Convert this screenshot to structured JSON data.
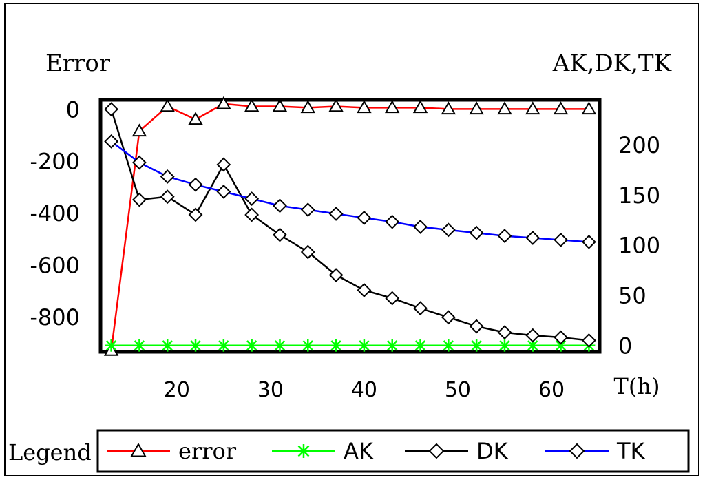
{
  "chart_data": {
    "type": "line",
    "left_axis_title": "Error",
    "right_axis_title": "AK,DK,TK",
    "xlabel": "T(h)",
    "x_ticks": [
      20,
      30,
      40,
      50,
      60
    ],
    "left_ticks": [
      0,
      -200,
      -400,
      -600,
      -800
    ],
    "right_ticks": [
      200,
      150,
      100,
      50,
      0
    ],
    "xlim": [
      12,
      65
    ],
    "ylim_left": [
      -930,
      30
    ],
    "ylim_right": [
      -5,
      243
    ],
    "x": [
      13,
      16,
      19,
      22,
      25,
      28,
      31,
      34,
      37,
      40,
      43,
      46,
      49,
      52,
      55,
      58,
      61,
      64
    ],
    "series": [
      {
        "name": "error",
        "axis": "left",
        "color": "#ff0000",
        "marker": "triangle",
        "values": [
          -930,
          -85,
          10,
          -40,
          20,
          10,
          10,
          5,
          10,
          5,
          5,
          5,
          0,
          0,
          0,
          0,
          0,
          0
        ]
      },
      {
        "name": "AK",
        "axis": "right",
        "color": "#00ff00",
        "marker": "star",
        "values": [
          0,
          0,
          0,
          0,
          0,
          0,
          0,
          0,
          0,
          0,
          0,
          0,
          0,
          0,
          0,
          0,
          0,
          0
        ]
      },
      {
        "name": "DK",
        "axis": "right",
        "color": "#000000",
        "marker": "diamond",
        "values": [
          235,
          145,
          148,
          130,
          180,
          130,
          110,
          93,
          70,
          55,
          47,
          37,
          28,
          19,
          13,
          10,
          8,
          5
        ]
      },
      {
        "name": "TK",
        "axis": "right",
        "color": "#0000ff",
        "marker": "diamond",
        "values": [
          203,
          182,
          168,
          160,
          153,
          146,
          139,
          135,
          131,
          127,
          123,
          118,
          115,
          112,
          109,
          107,
          105,
          103
        ]
      }
    ]
  },
  "legend": {
    "label": "Legend",
    "items": [
      {
        "label": "error",
        "color": "#ff0000",
        "marker": "triangle"
      },
      {
        "label": "AK",
        "color": "#00ff00",
        "marker": "star"
      },
      {
        "label": "DK",
        "color": "#000000",
        "marker": "diamond"
      },
      {
        "label": "TK",
        "color": "#0000ff",
        "marker": "diamond"
      }
    ]
  }
}
